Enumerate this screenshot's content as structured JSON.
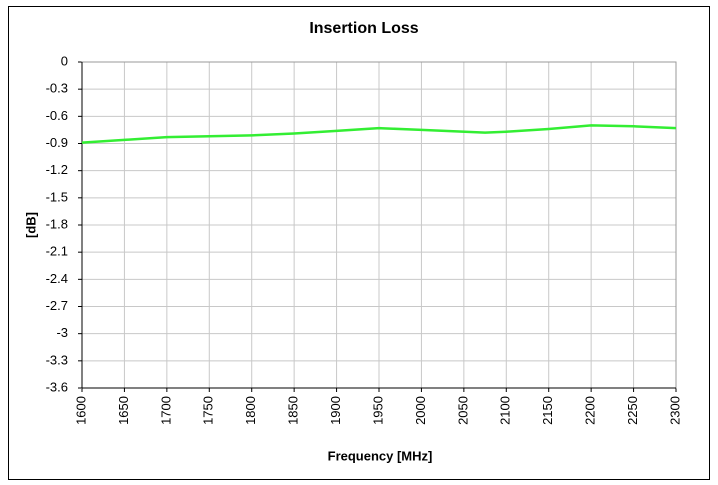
{
  "chart_data": {
    "type": "line",
    "title": "Insertion Loss",
    "xlabel": "Frequency [MHz]",
    "ylabel": "[dB]",
    "x": [
      1600,
      1650,
      1700,
      1750,
      1800,
      1850,
      1900,
      1950,
      2000,
      2075,
      2100,
      2150,
      2200,
      2250,
      2300
    ],
    "series": [
      {
        "name": "Insertion Loss",
        "color": "#33ee33",
        "values": [
          -0.89,
          -0.86,
          -0.83,
          -0.82,
          -0.81,
          -0.79,
          -0.76,
          -0.73,
          -0.75,
          -0.78,
          -0.77,
          -0.74,
          -0.7,
          -0.71,
          -0.73
        ]
      }
    ],
    "xlim": [
      1600,
      2300
    ],
    "xticks": [
      1600,
      1650,
      1700,
      1750,
      1800,
      1850,
      1900,
      1950,
      2000,
      2050,
      2100,
      2150,
      2200,
      2250,
      2300
    ],
    "ylim": [
      -3.6,
      0
    ],
    "yticks": [
      0,
      -0.3,
      -0.6,
      -0.9,
      -1.2,
      -1.5,
      -1.8,
      -2.1,
      -2.4,
      -2.7,
      -3,
      -3.3,
      -3.6
    ],
    "grid": true
  }
}
